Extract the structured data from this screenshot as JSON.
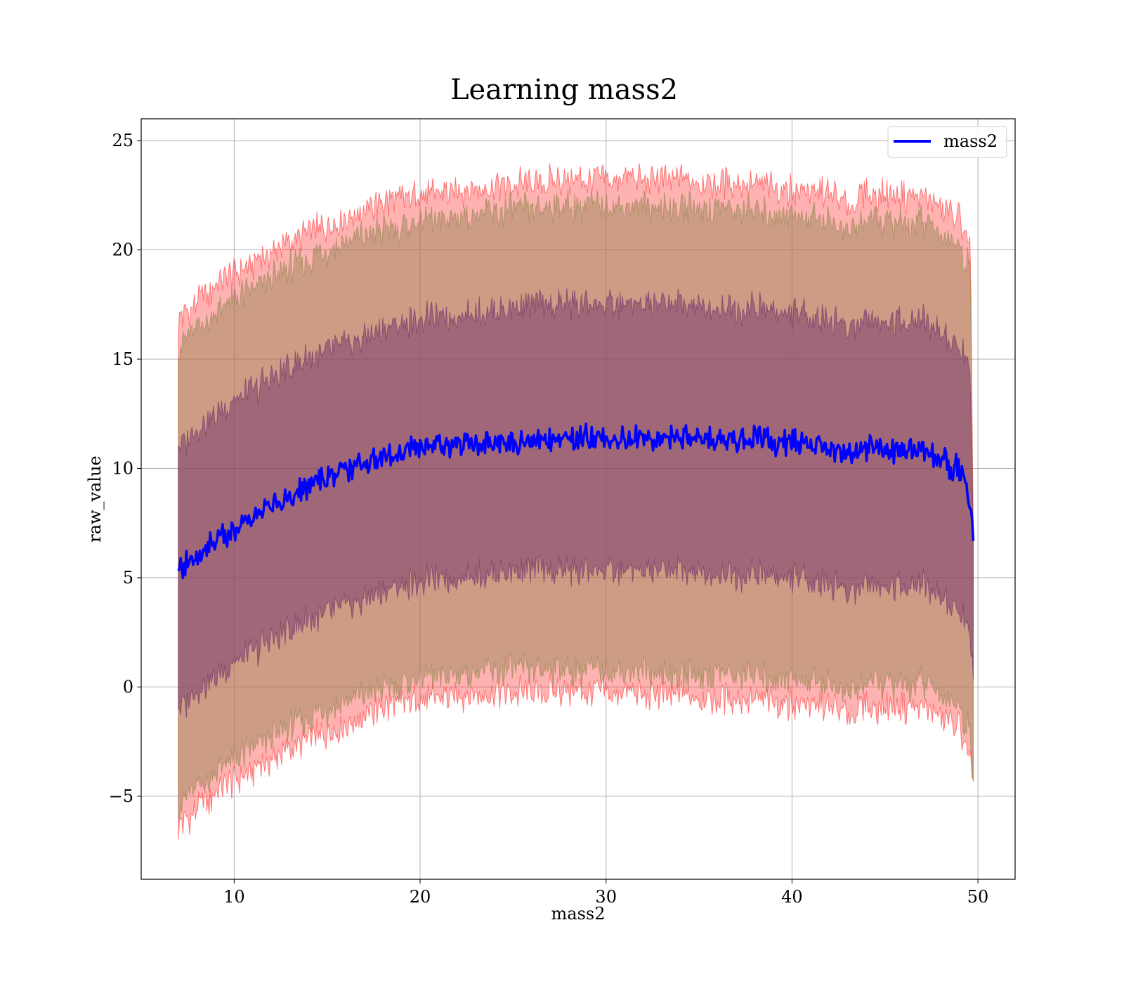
{
  "chart_data": {
    "type": "line",
    "title": "Learning mass2",
    "xlabel": "mass2",
    "ylabel": "raw_value",
    "xlim": [
      5,
      52
    ],
    "ylim": [
      -8.8,
      26
    ],
    "xticks": [
      10,
      20,
      30,
      40,
      50
    ],
    "yticks": [
      -5,
      0,
      5,
      10,
      15,
      20,
      25
    ],
    "xtick_labels": [
      "10",
      "20",
      "30",
      "40",
      "50"
    ],
    "ytick_labels": [
      "−5",
      "0",
      "5",
      "10",
      "15",
      "20",
      "25"
    ],
    "grid": true,
    "legend_position": "top-right",
    "legend_entries": [
      "mass2"
    ],
    "series": [
      {
        "name": "mass2",
        "color": "#0000ff",
        "x": [
          7,
          8,
          9,
          10,
          11,
          12,
          13,
          14,
          15,
          16,
          17,
          18,
          19,
          20,
          22,
          24,
          26,
          28,
          30,
          32,
          34,
          36,
          38,
          40,
          42,
          43,
          44,
          46,
          47,
          48,
          49,
          49.6,
          49.75
        ],
        "y": [
          5.2,
          6.0,
          6.7,
          7.3,
          7.8,
          8.3,
          8.7,
          9.2,
          9.6,
          10.0,
          10.3,
          10.6,
          10.8,
          11.0,
          11.1,
          11.2,
          11.3,
          11.4,
          11.4,
          11.4,
          11.4,
          11.3,
          11.3,
          11.2,
          11.0,
          10.5,
          11.0,
          10.8,
          11.0,
          10.4,
          10.0,
          8.5,
          6.8
        ]
      }
    ],
    "bands": [
      {
        "level": "outer",
        "color": "#ff0000",
        "opacity": 0.3,
        "x": [
          7,
          8,
          9,
          10,
          12,
          14,
          16,
          18,
          20,
          22,
          24,
          26,
          28,
          30,
          32,
          34,
          36,
          38,
          40,
          42,
          43,
          44,
          46,
          47,
          48,
          49,
          49.6,
          49.75
        ],
        "upper": [
          16.8,
          17.6,
          18.3,
          18.9,
          19.9,
          20.8,
          21.5,
          22.1,
          22.5,
          22.7,
          22.9,
          23.1,
          23.2,
          23.2,
          23.2,
          23.2,
          23.1,
          23.0,
          22.8,
          22.6,
          22.0,
          22.6,
          22.4,
          22.5,
          21.9,
          21.4,
          20.2,
          6.8
        ],
        "lower": [
          -6.4,
          -5.6,
          -4.9,
          -4.3,
          -3.3,
          -2.4,
          -1.7,
          -1.0,
          -0.6,
          -0.4,
          -0.3,
          -0.2,
          -0.2,
          -0.3,
          -0.4,
          -0.4,
          -0.5,
          -0.6,
          -0.7,
          -0.9,
          -1.3,
          -0.9,
          -1.0,
          -0.9,
          -1.4,
          -1.9,
          -3.3,
          -4.8
        ]
      },
      {
        "level": "middle",
        "color": "#998855",
        "opacity": 0.5,
        "x": [
          7,
          8,
          9,
          10,
          12,
          14,
          16,
          18,
          20,
          22,
          24,
          26,
          28,
          30,
          32,
          34,
          36,
          38,
          40,
          42,
          43,
          44,
          46,
          47,
          48,
          49,
          49.6,
          49.75
        ],
        "upper": [
          15.6,
          16.4,
          17.1,
          17.7,
          18.7,
          19.6,
          20.3,
          20.9,
          21.3,
          21.5,
          21.7,
          21.9,
          22.0,
          22.0,
          22.0,
          22.0,
          21.9,
          21.8,
          21.6,
          21.4,
          20.8,
          21.4,
          21.2,
          21.3,
          20.7,
          20.2,
          19.0,
          6.8
        ],
        "lower": [
          -5.4,
          -4.6,
          -3.9,
          -3.3,
          -2.3,
          -1.4,
          -0.7,
          -0.1,
          0.4,
          0.6,
          0.7,
          0.8,
          0.8,
          0.7,
          0.7,
          0.6,
          0.6,
          0.5,
          0.4,
          0.2,
          -0.3,
          0.2,
          0.1,
          0.2,
          -0.4,
          -0.9,
          -2.2,
          -4.0
        ]
      },
      {
        "level": "inner",
        "color": "#7a3a6e",
        "opacity": 0.55,
        "x": [
          7,
          8,
          9,
          10,
          12,
          14,
          16,
          18,
          20,
          22,
          24,
          26,
          28,
          30,
          32,
          34,
          36,
          38,
          40,
          42,
          43,
          44,
          46,
          47,
          48,
          49,
          49.6,
          49.75
        ],
        "upper": [
          11.0,
          11.8,
          12.5,
          13.1,
          14.1,
          15.0,
          15.7,
          16.3,
          16.8,
          17.0,
          17.2,
          17.4,
          17.5,
          17.5,
          17.5,
          17.5,
          17.4,
          17.3,
          17.1,
          16.9,
          16.4,
          16.9,
          16.7,
          16.8,
          16.2,
          15.7,
          14.6,
          6.8
        ],
        "lower": [
          -1.0,
          -0.2,
          0.5,
          1.1,
          2.1,
          3.0,
          3.7,
          4.3,
          4.8,
          5.0,
          5.2,
          5.3,
          5.3,
          5.3,
          5.3,
          5.3,
          5.2,
          5.1,
          5.0,
          4.8,
          4.3,
          4.8,
          4.6,
          4.7,
          4.1,
          3.6,
          2.5,
          0.5
        ]
      }
    ]
  }
}
